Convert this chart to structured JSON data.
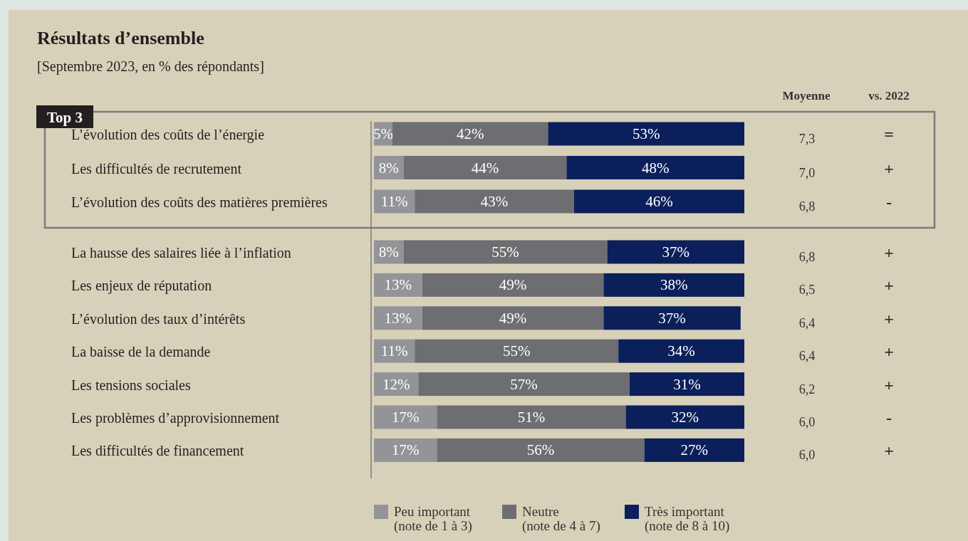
{
  "chart_data": {
    "type": "bar",
    "orientation": "horizontal",
    "stacked": true,
    "title": "Résultats d’ensemble",
    "subtitle": "[Septembre 2023, en % des répondants]",
    "categories": [
      "L’évolution des coûts de l’énergie",
      "Les difficultés de recrutement",
      "L’évolution des coûts des matières premières",
      "La hausse des salaires liée à l’inflation",
      "Les enjeux de réputation",
      "L’évolution des taux d’intérêts",
      "La baisse de la demande",
      "Les tensions sociales",
      "Les problèmes d’approvisionnement",
      "Les difficultés de financement"
    ],
    "series": [
      {
        "name": "Peu important\n(note de 1 à 3)",
        "color": "#939498",
        "values": [
          5,
          8,
          11,
          8,
          13,
          13,
          11,
          12,
          17,
          17
        ],
        "value_labels": [
          "5%",
          "8%",
          "11%",
          "8%",
          "13%",
          "13%",
          "11%",
          "12%",
          "17%",
          "17%"
        ]
      },
      {
        "name": "Neutre\n(note de 4 à 7)",
        "color": "#6d6e71",
        "values": [
          42,
          44,
          43,
          55,
          49,
          49,
          55,
          57,
          51,
          56
        ],
        "value_labels": [
          "42%",
          "44%",
          "43%",
          "55%",
          "49%",
          "49%",
          "55%",
          "57%",
          "51%",
          "56%"
        ]
      },
      {
        "name": "Très important\n(note de 8 à 10)",
        "color": "#0b1f5b",
        "values": [
          53,
          48,
          46,
          37,
          38,
          37,
          34,
          31,
          32,
          27
        ],
        "value_labels": [
          "53%",
          "48%",
          "46%",
          "37%",
          "38%",
          "37%",
          "34%",
          "31%",
          "32%",
          "27%"
        ]
      }
    ],
    "annotations": [
      "Top 3",
      "Moyenne",
      "vs. 2022",
      "7,3",
      "=",
      "7,0",
      "+",
      "6,8",
      "-",
      "6,8",
      "+",
      "6,5",
      "+",
      "6,4",
      "+",
      "6,4",
      "+",
      "6,2",
      "+",
      "6,0",
      "-",
      "6,0",
      "+"
    ],
    "legend": "bottom"
  }
}
